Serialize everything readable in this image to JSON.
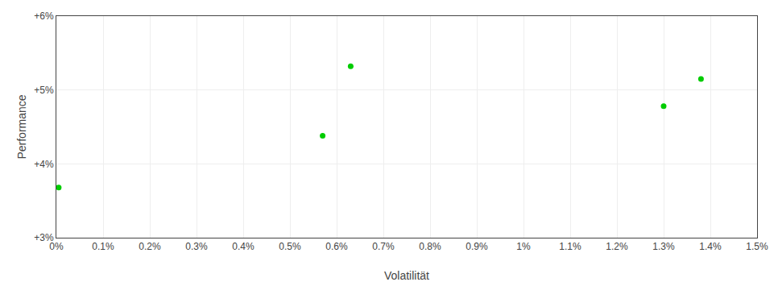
{
  "chart_data": {
    "type": "scatter",
    "xlabel": "Volatilität",
    "ylabel": "Performance",
    "x": [
      5e-05,
      0.0057,
      0.0063,
      0.013,
      0.0138
    ],
    "values": [
      3.68,
      4.38,
      5.32,
      4.78,
      5.15
    ],
    "color": "#00cc00",
    "xlim": [
      0.0,
      0.015
    ],
    "xticks": [
      {
        "value": 0.0,
        "label": "0%"
      },
      {
        "value": 0.001,
        "label": "0.1%"
      },
      {
        "value": 0.002,
        "label": "0.2%"
      },
      {
        "value": 0.003,
        "label": "0.3%"
      },
      {
        "value": 0.004,
        "label": "0.4%"
      },
      {
        "value": 0.005,
        "label": "0.5%"
      },
      {
        "value": 0.006,
        "label": "0.6%"
      },
      {
        "value": 0.007,
        "label": "0.7%"
      },
      {
        "value": 0.008,
        "label": "0.8%"
      },
      {
        "value": 0.009,
        "label": "0.9%"
      },
      {
        "value": 0.01,
        "label": "1%"
      },
      {
        "value": 0.011,
        "label": "1.1%"
      },
      {
        "value": 0.012,
        "label": "1.2%"
      },
      {
        "value": 0.013,
        "label": "1.3%"
      },
      {
        "value": 0.014,
        "label": "1.4%"
      },
      {
        "value": 0.015,
        "label": "1.5%"
      }
    ],
    "ylim": [
      3.0,
      6.0
    ],
    "yticks": [
      {
        "value": 3.0,
        "label": "+3%"
      },
      {
        "value": 4.0,
        "label": "+4%"
      },
      {
        "value": 5.0,
        "label": "+5%"
      },
      {
        "value": 6.0,
        "label": "+6%"
      }
    ],
    "grid": true
  }
}
